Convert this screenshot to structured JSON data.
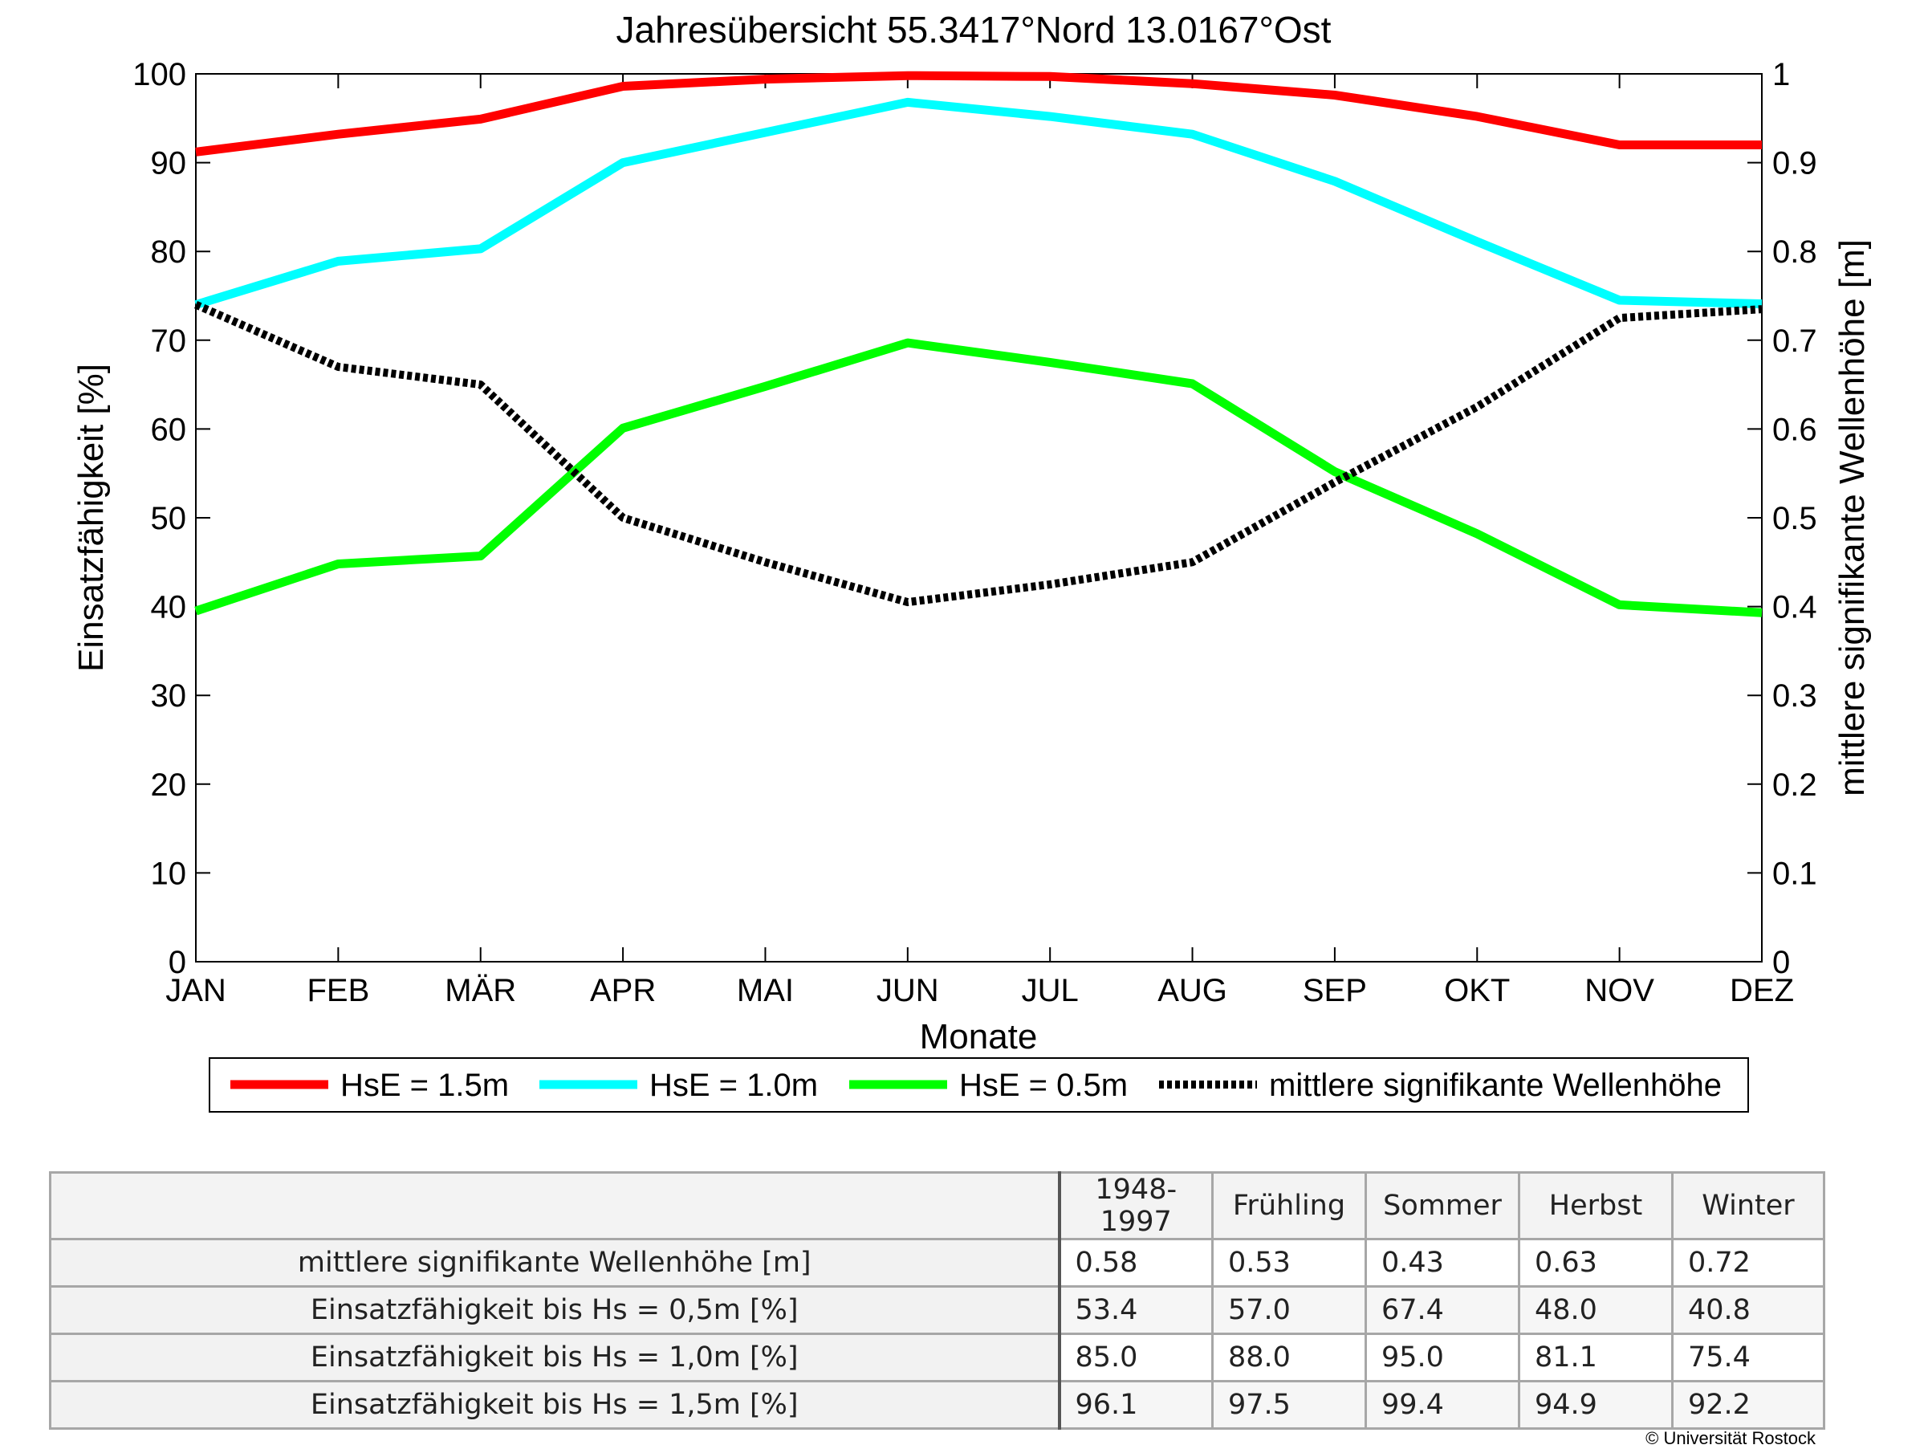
{
  "chart_data": {
    "type": "line",
    "title": "Jahresübersicht  55.3417°Nord  13.0167°Ost",
    "xlabel": "Monate",
    "ylabel_left": "Einsatzfähigkeit [%]",
    "ylabel_right": "mittlere signifikante Wellenhöhe [m]",
    "categories": [
      "JAN",
      "FEB",
      "MÄR",
      "APR",
      "MAI",
      "JUN",
      "JUL",
      "AUG",
      "SEP",
      "OKT",
      "NOV",
      "DEZ"
    ],
    "ylim_left": [
      0,
      100
    ],
    "yticks_left": [
      "0",
      "10",
      "20",
      "30",
      "40",
      "50",
      "60",
      "70",
      "80",
      "90",
      "100"
    ],
    "ylim_right": [
      0,
      1
    ],
    "yticks_right": [
      "0",
      "0.1",
      "0.2",
      "0.3",
      "0.4",
      "0.5",
      "0.6",
      "0.7",
      "0.8",
      "0.9",
      "1"
    ],
    "grid": false,
    "legend_position": "bottom",
    "series": [
      {
        "name": "HsE = 1.5m",
        "axis": "left",
        "color": "#ff0000",
        "style": "solid",
        "values": [
          91.2,
          93.2,
          94.9,
          98.6,
          99.4,
          99.8,
          99.7,
          98.9,
          97.6,
          95.2,
          92.0,
          92.0
        ]
      },
      {
        "name": "HsE = 1.0m",
        "axis": "left",
        "color": "#00ffff",
        "style": "solid",
        "values": [
          74.0,
          78.9,
          80.3,
          90.0,
          93.4,
          96.8,
          95.2,
          93.2,
          87.9,
          81.1,
          74.5,
          74.1
        ]
      },
      {
        "name": "HsE = 0.5m",
        "axis": "left",
        "color": "#00ff00",
        "style": "solid",
        "values": [
          39.5,
          44.8,
          45.7,
          60.1,
          64.8,
          69.7,
          67.5,
          65.1,
          55.2,
          48.2,
          40.2,
          39.3
        ]
      },
      {
        "name": "mittlere signifikante Wellenhöhe",
        "axis": "right",
        "color": "#000000",
        "style": "dotted",
        "values": [
          0.74,
          0.67,
          0.65,
          0.5,
          0.45,
          0.405,
          0.425,
          0.45,
          0.54,
          0.625,
          0.725,
          0.735
        ]
      }
    ]
  },
  "table": {
    "headers": [
      "",
      "1948-1997",
      "Frühling",
      "Sommer",
      "Herbst",
      "Winter"
    ],
    "rows": [
      {
        "label": "mittlere signifikante Wellenhöhe [m]",
        "values": [
          "0.58",
          "0.53",
          "0.43",
          "0.63",
          "0.72"
        ]
      },
      {
        "label": "Einsatzfähigkeit bis Hs = 0,5m [%]",
        "values": [
          "53.4",
          "57.0",
          "67.4",
          "48.0",
          "40.8"
        ]
      },
      {
        "label": "Einsatzfähigkeit bis Hs = 1,0m [%]",
        "values": [
          "85.0",
          "88.0",
          "95.0",
          "81.1",
          "75.4"
        ]
      },
      {
        "label": "Einsatzfähigkeit bis Hs = 1,5m [%]",
        "values": [
          "96.1",
          "97.5",
          "99.4",
          "94.9",
          "92.2"
        ]
      }
    ]
  },
  "footer": {
    "copyright": "© Universität Rostock"
  }
}
